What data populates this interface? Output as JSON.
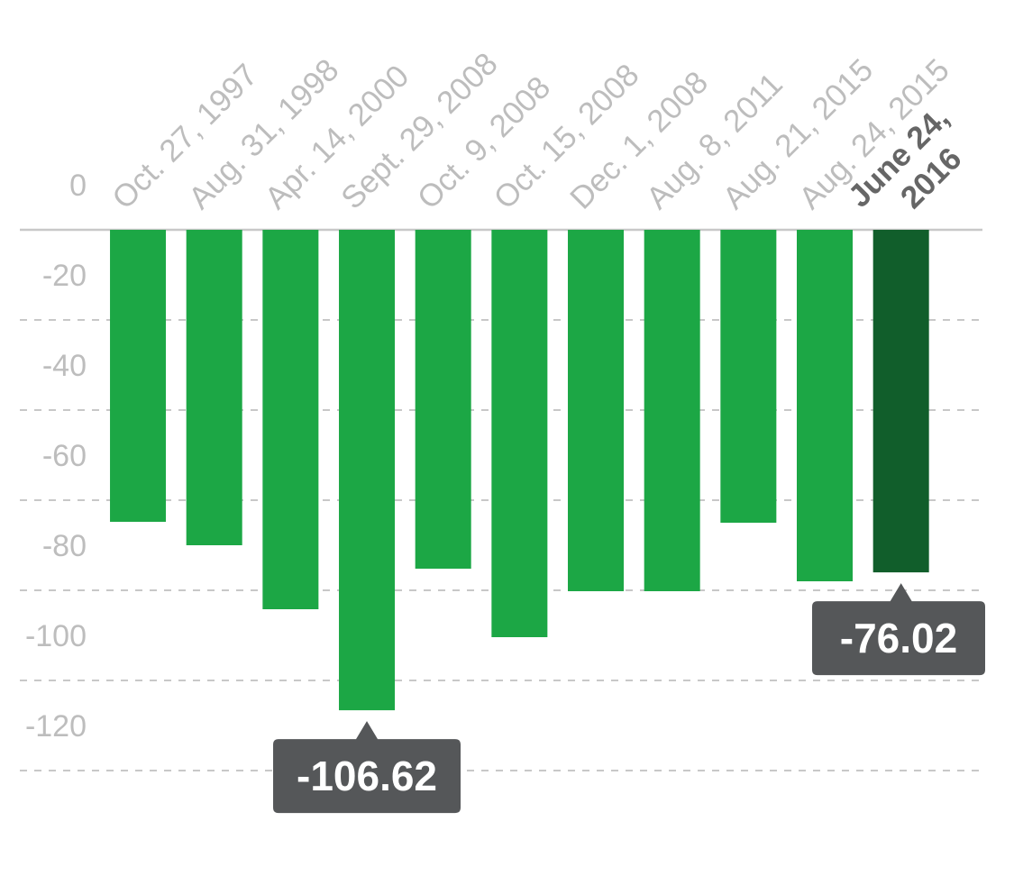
{
  "chart_data": {
    "type": "bar",
    "categories": [
      "Oct. 27, 1997",
      "Aug. 31, 1998",
      "Apr. 14, 2000",
      "Sept. 29, 2008",
      "Oct. 9, 2008",
      "Oct. 15, 2008",
      "Dec. 1, 2008",
      "Aug. 8, 2011",
      "Aug. 21, 2015",
      "Aug. 24, 2015",
      "June 24, 2016"
    ],
    "values": [
      -64.8,
      -70,
      -84.2,
      -106.62,
      -75.2,
      -90.4,
      -80.2,
      -80.2,
      -65,
      -78,
      -76.02
    ],
    "color": "#1ca745",
    "highlight": 10,
    "highlight_color": "#115e2b",
    "labeled": [
      3,
      10
    ],
    "ylim": [
      0,
      -120
    ],
    "yticks": [
      0,
      -20,
      -40,
      -60,
      -80,
      -100,
      -120
    ],
    "grid": true
  }
}
